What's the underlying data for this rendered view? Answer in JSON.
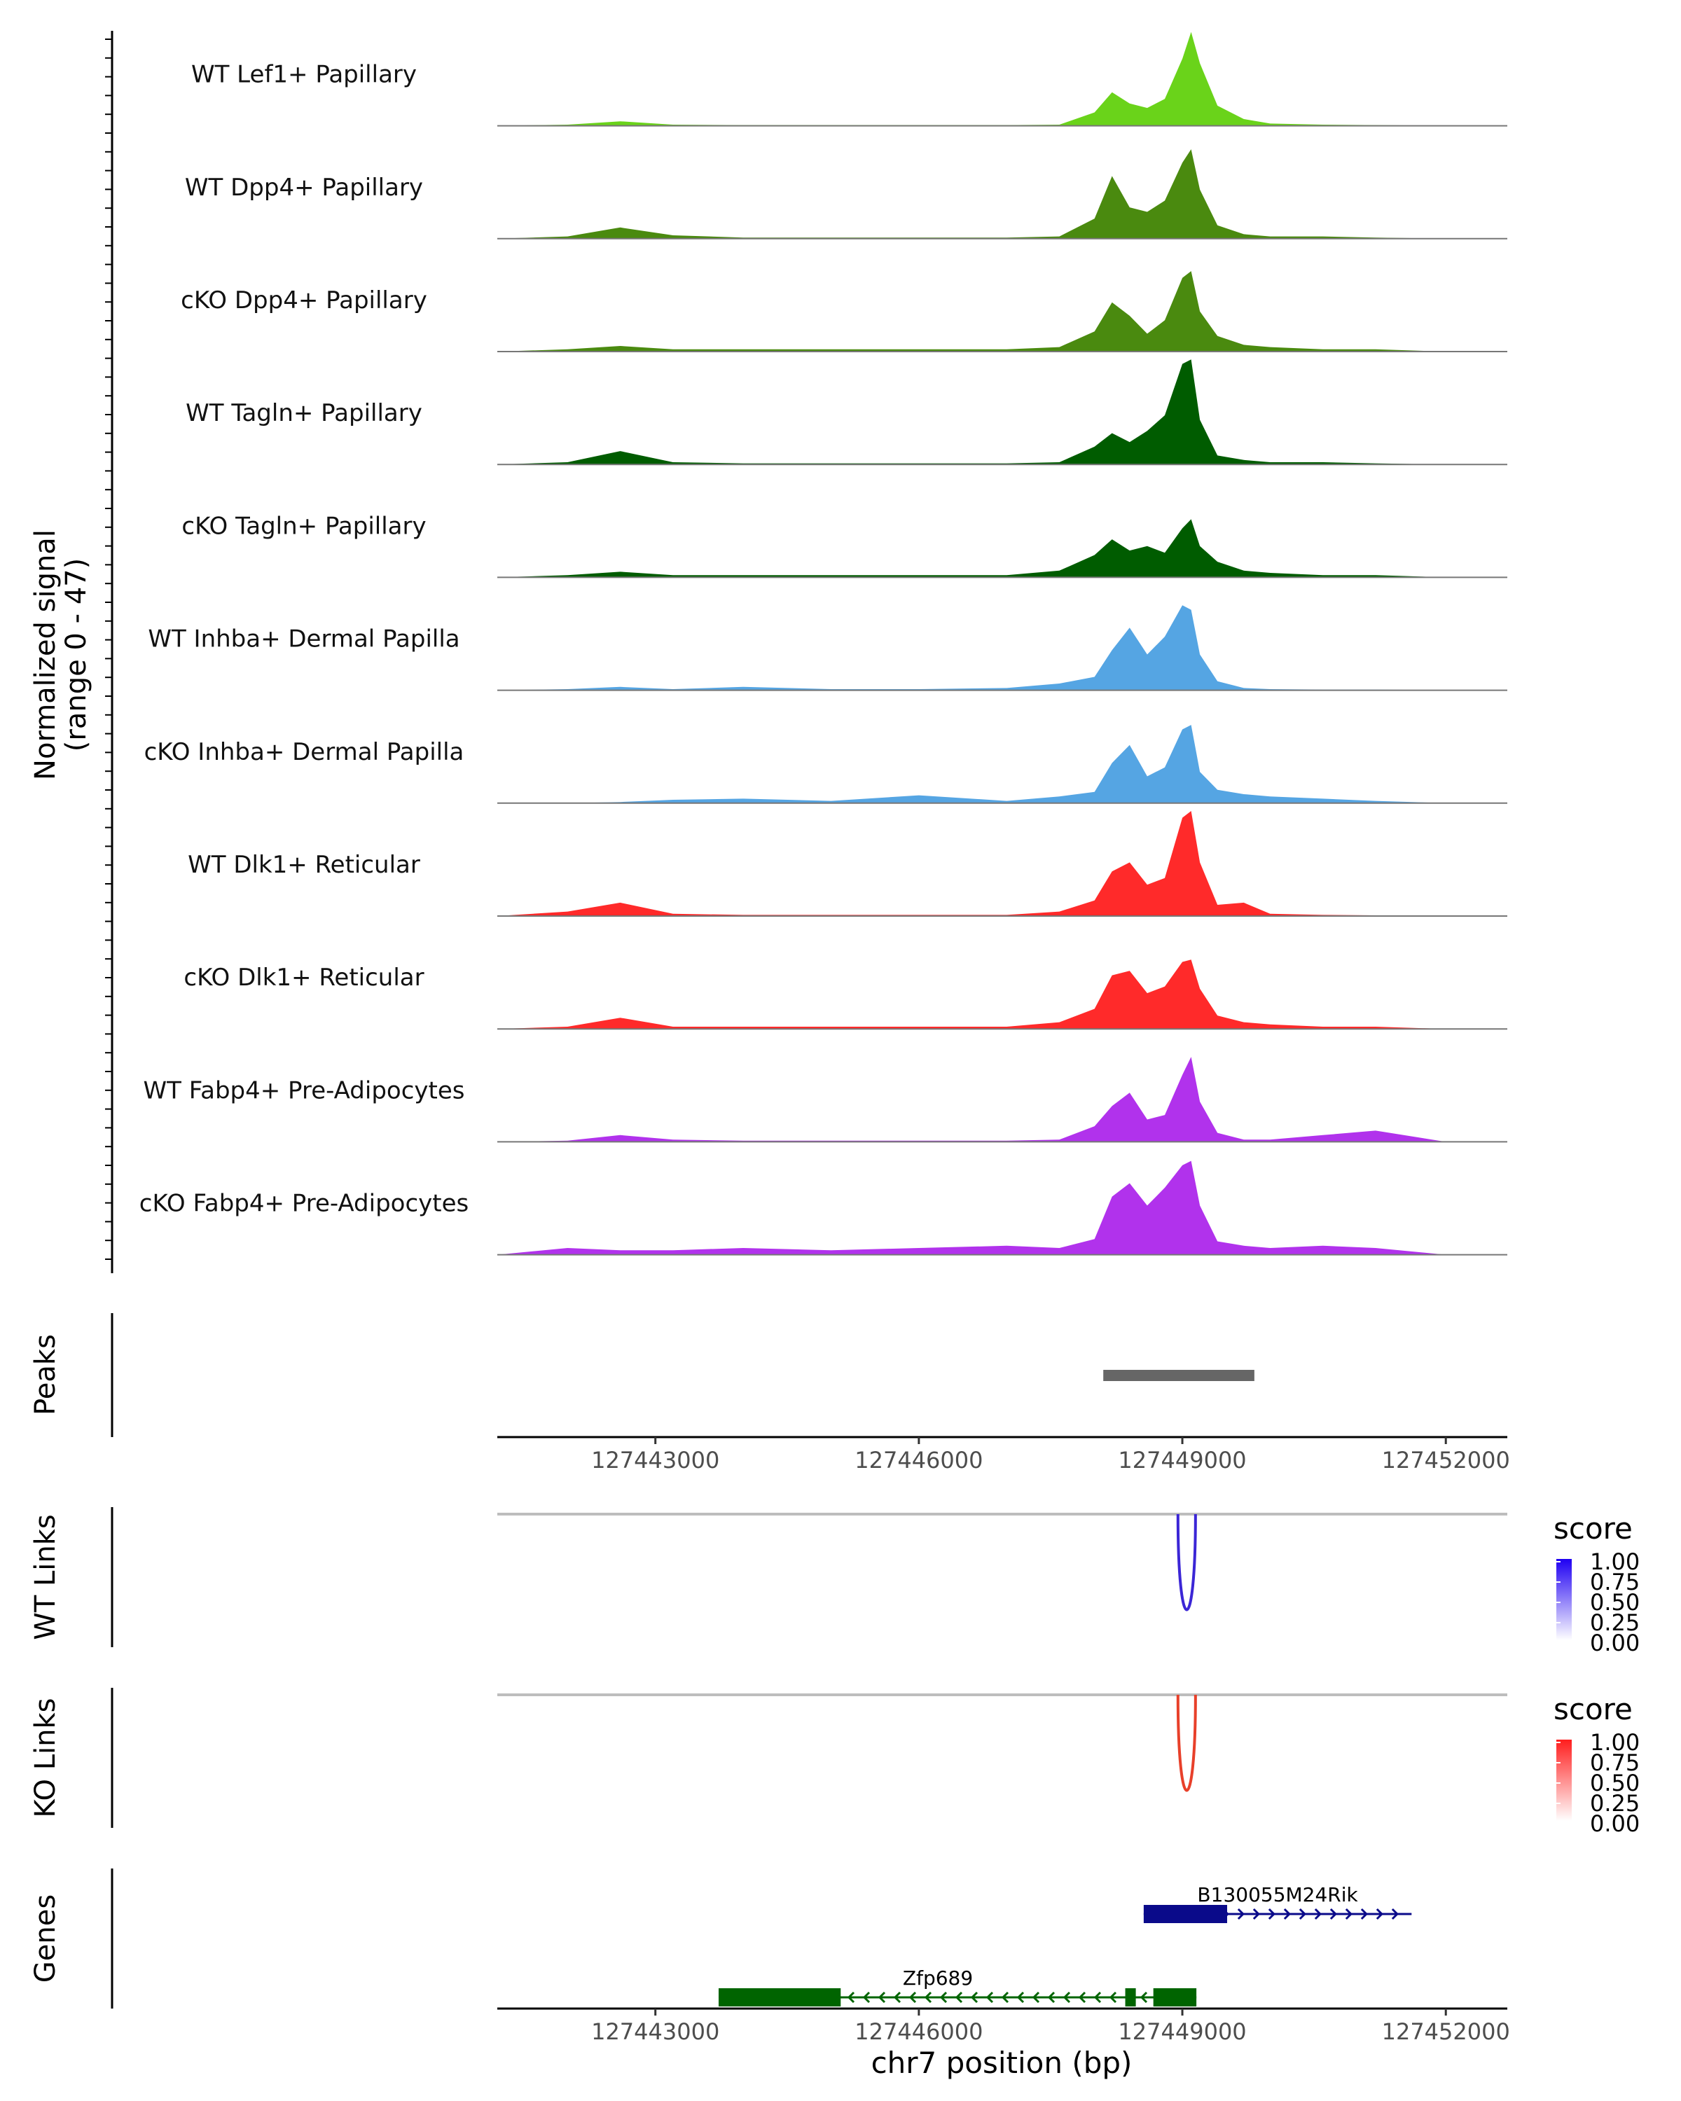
{
  "chart_data": [
    {
      "type": "area",
      "title": "",
      "ylabel_line1": "Normalized signal",
      "ylabel_line2": "(range 0 - 47)",
      "ylim": [
        0,
        47
      ],
      "xlim": [
        127441200,
        127452700
      ],
      "x": [
        127441200,
        127442000,
        127442600,
        127443200,
        127444000,
        127445000,
        127446000,
        127447000,
        127447600,
        127448000,
        127448200,
        127448400,
        127448600,
        127448800,
        127449000,
        127449100,
        127449200,
        127449400,
        127449700,
        127450000,
        127450600,
        127451200,
        127452000,
        127452700
      ],
      "series": [
        {
          "name": "WT Lef1+ Papillary",
          "color": "#6ad31a",
          "values": [
            0,
            0.5,
            2,
            0.5,
            0.3,
            0.3,
            0.3,
            0.3,
            0.5,
            6,
            15,
            10,
            8,
            12,
            30,
            42,
            28,
            9,
            3,
            1,
            0.5,
            0.3,
            0,
            0
          ]
        },
        {
          "name": "WT Dpp4+ Papillary",
          "color": "#4a8a0f",
          "values": [
            0,
            1,
            5,
            1.5,
            0.5,
            0.5,
            0.5,
            0.5,
            1,
            9,
            28,
            14,
            12,
            17,
            34,
            40,
            22,
            6,
            2,
            1,
            1,
            0.5,
            0,
            0
          ]
        },
        {
          "name": "cKO Dpp4+ Papillary",
          "color": "#4a8a0f",
          "values": [
            0,
            1,
            2.5,
            1,
            1,
            1,
            1,
            1,
            2,
            9,
            22,
            16,
            8,
            14,
            33,
            36,
            18,
            7,
            3,
            2,
            1,
            1,
            0,
            0
          ]
        },
        {
          "name": "WT Tagln+ Papillary",
          "color": "#005c00",
          "values": [
            0,
            1,
            6,
            1,
            0.5,
            0.5,
            0.5,
            0.5,
            1,
            8,
            14,
            10,
            15,
            22,
            45,
            47,
            20,
            4,
            2,
            1,
            1,
            0.5,
            0,
            0
          ]
        },
        {
          "name": "cKO Tagln+ Papillary",
          "color": "#005c00",
          "values": [
            0,
            1,
            2.5,
            1,
            1,
            1,
            1,
            1,
            3,
            10,
            17,
            12,
            14,
            11,
            22,
            26,
            14,
            7,
            3,
            2,
            1,
            1,
            0,
            0
          ]
        },
        {
          "name": "WT Inhba+ Dermal Papilla",
          "color": "#55a5e3",
          "values": [
            0,
            0.5,
            1.5,
            0.5,
            1.5,
            0.5,
            0.5,
            1,
            3,
            6,
            18,
            28,
            16,
            24,
            38,
            36,
            16,
            4,
            1,
            0.5,
            0.3,
            0.3,
            0,
            0
          ]
        },
        {
          "name": "cKO Inhba+ Dermal Papilla",
          "color": "#55a5e3",
          "values": [
            0,
            0,
            0.5,
            1.5,
            2,
            1,
            3.5,
            1,
            3,
            5,
            18,
            26,
            12,
            16,
            33,
            35,
            14,
            6,
            4,
            3,
            2,
            1,
            0,
            0
          ]
        },
        {
          "name": "WT Dlk1+ Reticular",
          "color": "#ff2a2a",
          "values": [
            0,
            2,
            6,
            1,
            0.5,
            0.5,
            0.5,
            0.5,
            2,
            7,
            20,
            24,
            14,
            17,
            44,
            47,
            24,
            5,
            6,
            1,
            0.5,
            0.3,
            0,
            0
          ]
        },
        {
          "name": "cKO Dlk1+ Reticular",
          "color": "#ff2a2a",
          "values": [
            0,
            1,
            5,
            1,
            1,
            1,
            1,
            1,
            3,
            9,
            24,
            26,
            16,
            19,
            30,
            31,
            18,
            6,
            3,
            2,
            1,
            1,
            0,
            0
          ]
        },
        {
          "name": "WT Fabp4+ Pre-Adipocytes",
          "color": "#b132ec",
          "values": [
            0,
            0.5,
            3,
            1,
            0.5,
            0.5,
            0.5,
            0.5,
            1,
            7,
            16,
            22,
            10,
            12,
            30,
            38,
            18,
            4,
            1,
            1,
            3,
            5,
            0,
            0
          ]
        },
        {
          "name": "cKO Fabp4+ Pre-Adipocytes",
          "color": "#b132ec",
          "values": [
            0,
            3,
            2,
            2,
            3,
            2,
            3,
            4,
            3,
            7,
            26,
            32,
            22,
            30,
            40,
            42,
            22,
            6,
            4,
            3,
            4,
            3,
            0,
            0
          ]
        }
      ]
    },
    {
      "type": "track",
      "ylabel": "Peaks",
      "peaks": [
        {
          "start": 127448100,
          "end": 127449820,
          "color": "#666666"
        }
      ],
      "x_ticks": [
        "127443000",
        "127446000",
        "127449000",
        "127452000"
      ],
      "x_tick_values": [
        127443000,
        127446000,
        127449000,
        127452000
      ]
    },
    {
      "type": "links",
      "ylabel": "WT Links",
      "color": "#3b26d6",
      "links": [
        {
          "start": 127448950,
          "end": 127449150,
          "score": 1.0
        }
      ],
      "legend_title": "score",
      "legend_ticks": [
        "1.00",
        "0.75",
        "0.50",
        "0.25",
        "0.00"
      ],
      "legend_color_high": "#1f00f2",
      "legend_color_low": "#ffffff"
    },
    {
      "type": "links",
      "ylabel": "KO Links",
      "color": "#e8402a",
      "links": [
        {
          "start": 127448950,
          "end": 127449150,
          "score": 1.0
        }
      ],
      "legend_title": "score",
      "legend_ticks": [
        "1.00",
        "0.75",
        "0.50",
        "0.25",
        "0.00"
      ],
      "legend_color_high": "#ff1e1e",
      "legend_color_low": "#ffffff"
    },
    {
      "type": "genes",
      "ylabel": "Genes",
      "xlabel": "chr7 position (bp)",
      "x_ticks": [
        "127443000",
        "127446000",
        "127449000",
        "127452000"
      ],
      "x_tick_values": [
        127443000,
        127446000,
        127449000,
        127452000
      ],
      "genes": [
        {
          "name": "B130055M24Rik",
          "strand": "+",
          "color": "#0a0a8a",
          "start": 127448560,
          "end": 127451610,
          "exons": [
            [
              127448560,
              127449510
            ]
          ],
          "row": 0
        },
        {
          "name": "Zfp689",
          "strand": "-",
          "color": "#006400",
          "start": 127443720,
          "end": 127449160,
          "exons": [
            [
              127443720,
              127445110
            ],
            [
              127448350,
              127448470
            ],
            [
              127448670,
              127449160
            ]
          ],
          "row": 1
        }
      ]
    }
  ]
}
